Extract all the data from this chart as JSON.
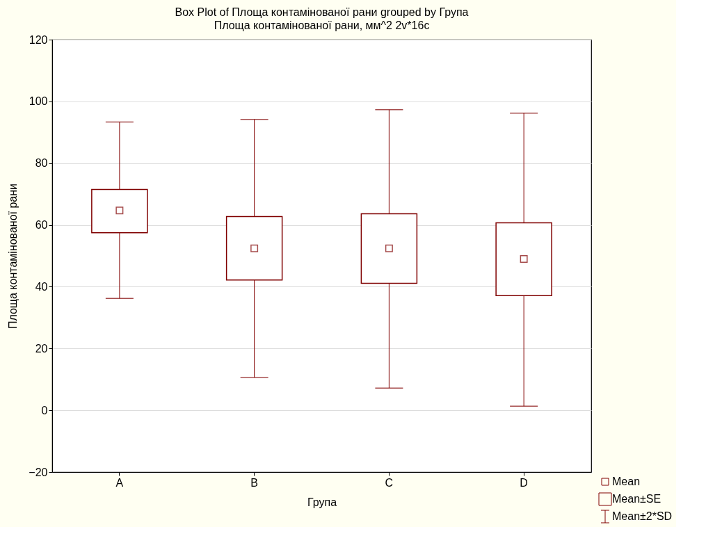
{
  "chart_data": {
    "type": "box",
    "title": "Box Plot of Площа контамінованої рани grouped by  Група",
    "subtitle": "Площа контамінованої рани, мм^2 2v*16c",
    "xlabel": "Група",
    "ylabel": "Площа контамінованої рани",
    "categories": [
      "A",
      "B",
      "C",
      "D"
    ],
    "boxes": [
      {
        "low": 36.2,
        "q1": 57.5,
        "q3": 71.5,
        "high": 93.3,
        "mean": 64.7
      },
      {
        "low": 10.6,
        "q1": 42.2,
        "q3": 62.7,
        "high": 94.2,
        "mean": 52.4
      },
      {
        "low": 7.2,
        "q1": 41.1,
        "q3": 63.6,
        "high": 97.3,
        "mean": 52.4
      },
      {
        "low": 1.3,
        "q1": 37.1,
        "q3": 60.7,
        "high": 96.2,
        "mean": 49.0
      }
    ],
    "color": "#800000",
    "ylim": [
      -20,
      120
    ],
    "yticks": [
      -20,
      0,
      20,
      40,
      60,
      80,
      100,
      120
    ],
    "grid": "y",
    "annotations": [
      "Mean",
      "Mean±SE",
      "Mean±2*SD"
    ]
  }
}
